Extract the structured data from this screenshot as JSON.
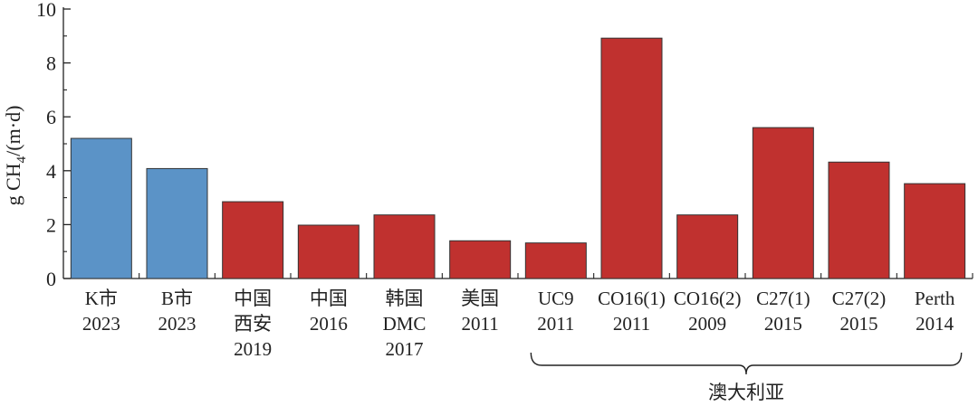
{
  "chart_data": {
    "type": "bar",
    "ylabel_parts": {
      "main": "g CH",
      "sub": "4",
      "unit": "/(m·d)"
    },
    "ylim": [
      0,
      10
    ],
    "yticks": [
      "0",
      "2",
      "4",
      "6",
      "8",
      "10"
    ],
    "grid": false,
    "colors": {
      "blue": "#5b93c7",
      "red": "#c0312f"
    },
    "bars": [
      {
        "lines": [
          "K市",
          "2023"
        ],
        "value": 5.2,
        "color": "blue"
      },
      {
        "lines": [
          "B市",
          "2023"
        ],
        "value": 4.08,
        "color": "blue"
      },
      {
        "lines": [
          "中国",
          "西安",
          "2019"
        ],
        "value": 2.85,
        "color": "red"
      },
      {
        "lines": [
          "中国",
          "2016"
        ],
        "value": 1.98,
        "color": "red"
      },
      {
        "lines": [
          "韩国",
          "DMC",
          "2017"
        ],
        "value": 2.36,
        "color": "red"
      },
      {
        "lines": [
          "美国",
          "2011"
        ],
        "value": 1.4,
        "color": "red"
      },
      {
        "lines": [
          "UC9",
          "2011"
        ],
        "value": 1.32,
        "color": "red"
      },
      {
        "lines": [
          "CO16(1)",
          "2011"
        ],
        "value": 8.92,
        "color": "red"
      },
      {
        "lines": [
          "CO16(2)",
          "2009"
        ],
        "value": 2.36,
        "color": "red"
      },
      {
        "lines": [
          "C27(1)",
          "2015"
        ],
        "value": 5.6,
        "color": "red"
      },
      {
        "lines": [
          "C27(2)",
          "2015"
        ],
        "value": 4.32,
        "color": "red"
      },
      {
        "lines": [
          "Perth",
          "2014"
        ],
        "value": 3.52,
        "color": "red"
      }
    ],
    "group": {
      "label": "澳大利亚",
      "start_index": 6,
      "end_index": 11
    }
  }
}
